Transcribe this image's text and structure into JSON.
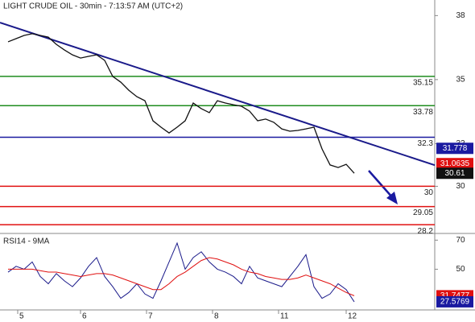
{
  "chart_data": {
    "type": "line",
    "title": "LIGHT CRUDE OIL - 30min - 7:13:57 AM (UTC+2)",
    "x": [
      0,
      1,
      2,
      3,
      4,
      5,
      6,
      7,
      8,
      9,
      10,
      11,
      12,
      13,
      14,
      15,
      16,
      17,
      18,
      19,
      20,
      21,
      22,
      23,
      24,
      25,
      26,
      27,
      28,
      29,
      30,
      31,
      32,
      33,
      34,
      35,
      36,
      37,
      38,
      39,
      40,
      41,
      42,
      43
    ],
    "xlim": [
      -1,
      53
    ],
    "xticks": [
      {
        "value": 1.2,
        "label": "5"
      },
      {
        "value": 9,
        "label": "6"
      },
      {
        "value": 17.2,
        "label": "7"
      },
      {
        "value": 25.4,
        "label": "8"
      },
      {
        "value": 33.6,
        "label": "11"
      },
      {
        "value": 42,
        "label": "12"
      }
    ],
    "ylim": [
      27.79,
      38.73
    ],
    "yticks": [
      38,
      35,
      32,
      30
    ],
    "series": [
      {
        "color": "#111111",
        "values": [
          36.77,
          36.92,
          37.07,
          37.15,
          37.07,
          36.99,
          36.65,
          36.39,
          36.16,
          36.01,
          36.09,
          36.16,
          35.9,
          35.15,
          34.88,
          34.5,
          34.2,
          34.01,
          33.07,
          32.77,
          32.5,
          32.77,
          33.07,
          33.9,
          33.64,
          33.45,
          34.01,
          33.9,
          33.82,
          33.75,
          33.52,
          33.07,
          33.15,
          33.0,
          32.69,
          32.58,
          32.62,
          32.69,
          32.77,
          31.75,
          31.0,
          30.88,
          31.03,
          30.61
        ]
      }
    ],
    "levels": [
      {
        "value": 35.15,
        "color": "#1e8c1e"
      },
      {
        "value": 33.78,
        "color": "#1e8c1e"
      },
      {
        "value": 32.3,
        "color": "#1a1aa0"
      },
      {
        "value": 30,
        "color": "#e01010"
      },
      {
        "value": 29.05,
        "color": "#e01010"
      },
      {
        "value": 28.2,
        "color": "#e01010"
      }
    ],
    "trendline": {
      "x": [
        -1,
        53
      ],
      "values": [
        37.67,
        30.99
      ],
      "color": "#1a1a8a"
    },
    "badges": [
      {
        "value": 31.778,
        "color": "#1a1aa0"
      },
      {
        "value": 31.0635,
        "color": "#e01010"
      },
      {
        "value": 30.61,
        "color": "#111111"
      }
    ],
    "rsi": {
      "title": "RSI14 - 9MA",
      "ylim": [
        22,
        74.6
      ],
      "yticks": [
        70,
        50
      ],
      "series": [
        {
          "color": "#1a1a8a",
          "values": [
            48,
            52,
            50,
            55,
            45,
            40,
            47,
            42,
            38,
            44,
            52,
            58,
            45,
            38,
            30,
            34,
            40,
            33,
            30,
            42,
            55,
            68,
            50,
            58,
            62,
            55,
            50,
            48,
            45,
            40,
            52,
            44,
            42,
            40,
            38,
            45,
            52,
            60,
            38,
            30,
            33,
            40,
            36,
            27.5769
          ]
        },
        {
          "color": "#e01010",
          "values": [
            50,
            50,
            50,
            50,
            49,
            48,
            48,
            47,
            46,
            45,
            46,
            47,
            47,
            46,
            44,
            42,
            40,
            38,
            36,
            36,
            40,
            45,
            48,
            52,
            56,
            58,
            57,
            55,
            53,
            50,
            48,
            47,
            45,
            44,
            43,
            43,
            44,
            46,
            44,
            42,
            40,
            37,
            34,
            31.7477
          ]
        }
      ],
      "badges": [
        {
          "value": 31.7477,
          "color": "#e01010"
        },
        {
          "value": 27.5769,
          "color": "#1a1aa0"
        }
      ]
    }
  }
}
